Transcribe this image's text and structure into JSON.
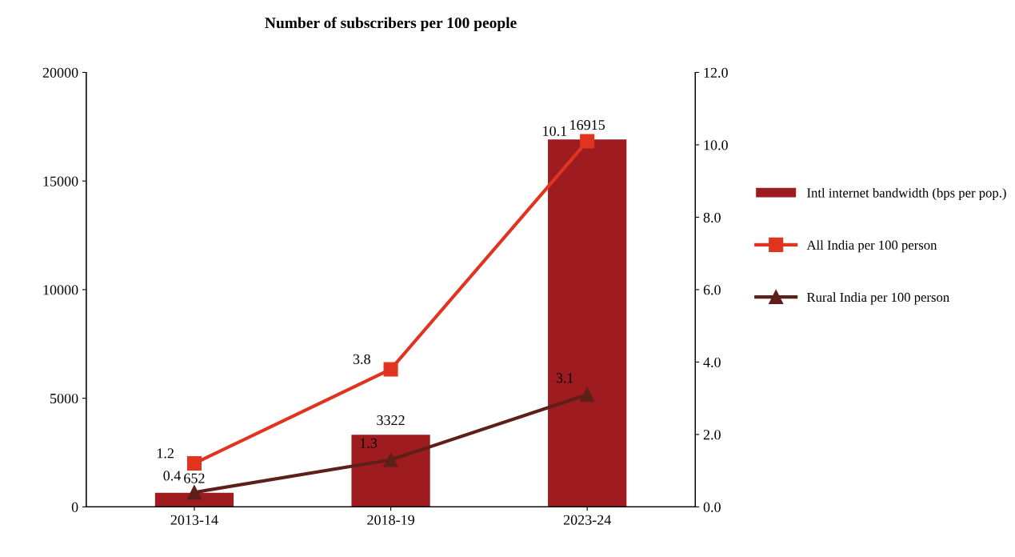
{
  "chart_data": {
    "type": "bar",
    "title": "Number of subscribers per 100 people",
    "categories": [
      "2013-14",
      "2018-19",
      "2023-24"
    ],
    "series": [
      {
        "name": "Intl internet bandwidth (bps per pop.)",
        "type": "bar",
        "color": "#9e1c1f",
        "values": [
          652,
          3322,
          16915
        ]
      },
      {
        "name": "All India per 100 person",
        "type": "line",
        "axis": "y2",
        "color": "#e03420",
        "marker": "square",
        "values": [
          1.2,
          3.8,
          10.1
        ]
      },
      {
        "name": "Rural India per 100 person",
        "type": "line",
        "axis": "y2",
        "color": "#5e1f1a",
        "marker": "triangle",
        "values": [
          0.4,
          1.3,
          3.1
        ]
      }
    ],
    "ylim": [
      0,
      20000
    ],
    "yticks": [
      0,
      5000,
      10000,
      15000,
      20000
    ],
    "y2lim": [
      0,
      12
    ],
    "y2ticks": [
      {
        "value": 0,
        "label": "0.0"
      },
      {
        "value": 2,
        "label": "2.0"
      },
      {
        "value": 4,
        "label": "4.0"
      },
      {
        "value": 6,
        "label": "6.0"
      },
      {
        "value": 8,
        "label": "8.0"
      },
      {
        "value": 10,
        "label": "10.0"
      },
      {
        "value": 12,
        "label": "12.0"
      }
    ],
    "data_labels": true,
    "legend": "right",
    "grid": false
  }
}
